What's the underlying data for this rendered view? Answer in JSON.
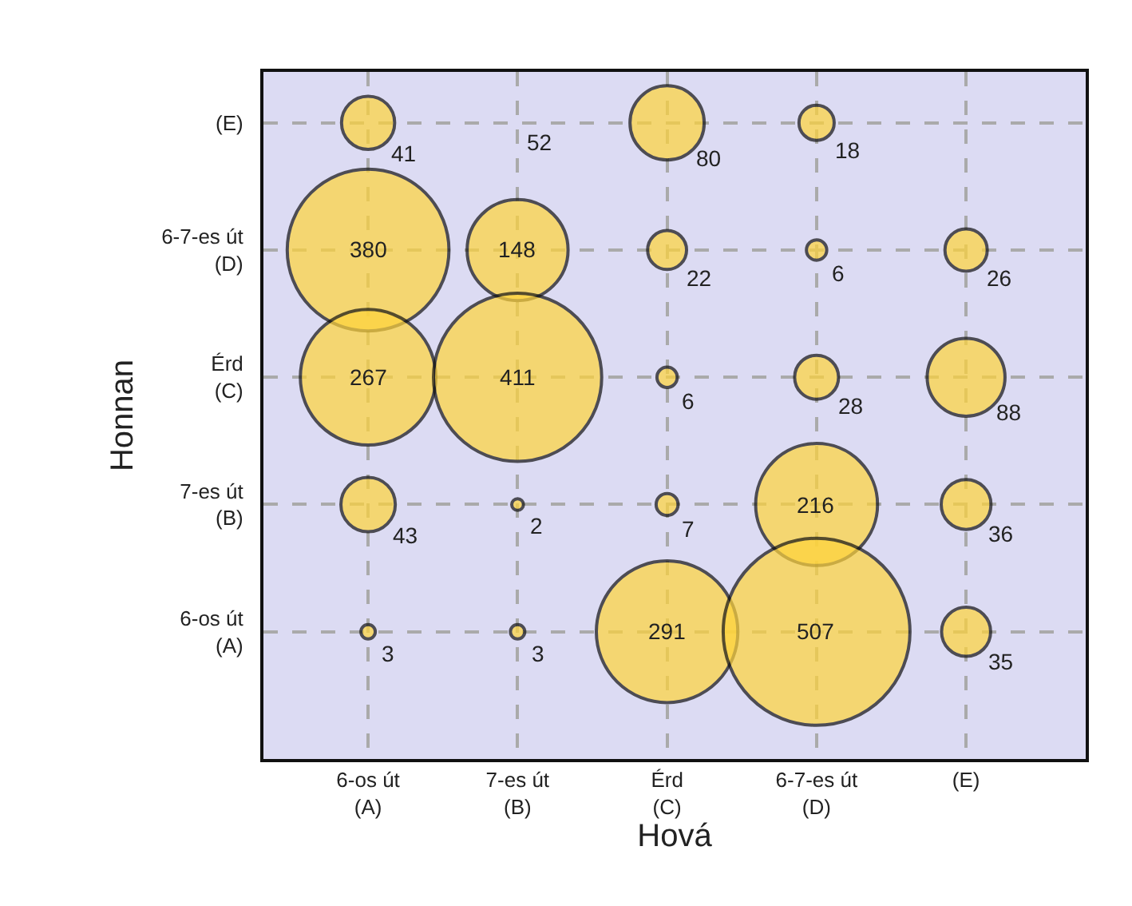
{
  "chart_data": {
    "type": "heatmap",
    "xlabel": "Hová",
    "ylabel": "Honnan",
    "categories": [
      "6-os út (A)",
      "7-es út (B)",
      "Érd (C)",
      "6-7-es út (D)",
      "(E)"
    ],
    "y_categories": [
      "(E)",
      "6-7-es út (D)",
      "Érd (C)",
      "7-es út (B)",
      "6-os út (A)"
    ],
    "cells": [
      [
        41,
        null,
        80,
        18,
        null
      ],
      [
        380,
        148,
        22,
        6,
        26
      ],
      [
        267,
        411,
        6,
        28,
        88
      ],
      [
        43,
        2,
        7,
        216,
        36
      ],
      [
        3,
        3,
        291,
        507,
        35
      ]
    ],
    "cell_labels": [
      [
        "41",
        "52",
        "80",
        "18",
        null
      ],
      [
        "380",
        "148",
        "22",
        "6",
        "26"
      ],
      [
        "267",
        "411",
        "6",
        "28",
        "88"
      ],
      [
        "43",
        "2",
        "7",
        "216",
        "36"
      ],
      [
        "3",
        "3",
        "291",
        "507",
        "35"
      ]
    ],
    "color": "#ffd43b",
    "grid": true
  }
}
